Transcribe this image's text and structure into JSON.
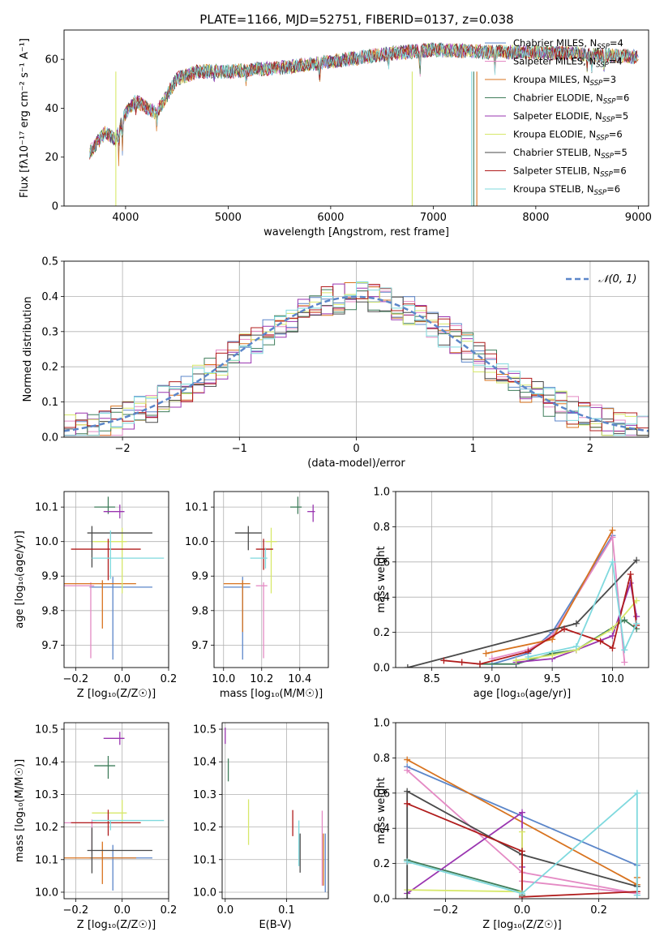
{
  "figure_title": "PLATE=1166, MJD=52751, FIBERID=0137, z=0.038",
  "colors": [
    "#5b86c9",
    "#e48ac4",
    "#d8731f",
    "#3f7d5a",
    "#9a35b0",
    "#d7e86a",
    "#4a4a4a",
    "#b01c1c",
    "#7fd9de"
  ],
  "chart_data": [
    {
      "type": "line",
      "title": "PLATE=1166, MJD=52751, FIBERID=0137, z=0.038",
      "xlabel": "wavelength [Angstrom, rest frame]",
      "ylabel": "Flux [fλ10⁻¹⁷ erg cm⁻² s⁻¹ A⁻¹]",
      "xlim": [
        3400,
        9100
      ],
      "ylim": [
        0,
        72
      ],
      "xticks": [
        "4000",
        "5000",
        "6000",
        "7000",
        "8000",
        "9000"
      ],
      "yticks": [
        "0",
        "20",
        "40",
        "60"
      ],
      "grid": false,
      "legend": "top-right",
      "spectrum_continuum": {
        "x": [
          3650,
          3800,
          3900,
          4000,
          4100,
          4300,
          4500,
          4700,
          5000,
          5300,
          5600,
          6000,
          6500,
          7000,
          7500,
          8000,
          8500,
          9000
        ],
        "y": [
          22,
          30,
          27,
          38,
          43,
          38,
          52,
          55,
          55,
          56,
          57,
          59,
          62,
          64,
          63,
          63,
          62,
          61
        ]
      },
      "series": [
        {
          "name": "Chabrier MILES, N",
          "sub": "SSP",
          "eq": "=4"
        },
        {
          "name": "Salpeter MILES, N",
          "sub": "SSP",
          "eq": "=4"
        },
        {
          "name": "Kroupa MILES, N",
          "sub": "SSP",
          "eq": "=3"
        },
        {
          "name": "Chabrier ELODIE, N",
          "sub": "SSP",
          "eq": "=6"
        },
        {
          "name": "Salpeter ELODIE, N",
          "sub": "SSP",
          "eq": "=5"
        },
        {
          "name": "Kroupa ELODIE, N",
          "sub": "SSP",
          "eq": "=6"
        },
        {
          "name": "Chabrier STELIB, N",
          "sub": "SSP",
          "eq": "=5"
        },
        {
          "name": "Salpeter STELIB, N",
          "sub": "SSP",
          "eq": "=6"
        },
        {
          "name": "Kroupa STELIB, N",
          "sub": "SSP",
          "eq": "=6"
        }
      ]
    },
    {
      "type": "step-histogram",
      "xlabel": "(data-model)/error",
      "ylabel": "Normed distribution",
      "xlim": [
        -2.5,
        2.5
      ],
      "ylim": [
        0,
        0.5
      ],
      "xticks": [
        "−2",
        "−1",
        "0",
        "1",
        "2"
      ],
      "yticks": [
        "0.0",
        "0.1",
        "0.2",
        "0.3",
        "0.4",
        "0.5"
      ],
      "grid": true,
      "legend": "top-right",
      "reference_curve": {
        "name": "𝒩(0, 1)",
        "mean": 0,
        "sigma": 1
      },
      "bin_width": 0.1,
      "shape": "normal"
    },
    {
      "type": "errorbar",
      "xlabel": "Z [log₁₀(Z/Z☉)]",
      "ylabel": "age  [log₁₀(age/yr)]",
      "xlim": [
        -0.25,
        0.2
      ],
      "ylim": [
        9.635,
        10.145
      ],
      "xticks": [
        "−0.2",
        "0.0",
        "0.2"
      ],
      "yticks": [
        "9.7",
        "9.8",
        "9.9",
        "10.0",
        "10.1"
      ],
      "grid": true,
      "points": [
        {
          "x": -0.04,
          "y": 9.868,
          "xerr": [
            0.1,
            0.17
          ],
          "yerr": [
            0.21,
            0.03
          ]
        },
        {
          "x": -0.135,
          "y": 9.872,
          "xerr": [
            0.115,
            0.015
          ],
          "yerr": [
            0.21,
            0.01
          ]
        },
        {
          "x": -0.085,
          "y": 9.878,
          "xerr": [
            0.165,
            0.145
          ],
          "yerr": [
            0.13,
            0.01
          ]
        },
        {
          "x": -0.06,
          "y": 10.1,
          "xerr": [
            0.06,
            0.03
          ],
          "yerr": [
            0.02,
            0.03
          ]
        },
        {
          "x": -0.01,
          "y": 10.087,
          "xerr": [
            0.07,
            0.02
          ],
          "yerr": [
            0.02,
            0.02
          ]
        },
        {
          "x": 0.0,
          "y": 10.0,
          "xerr": [
            0.13,
            0.02
          ],
          "yerr": [
            0.15,
            0.04
          ]
        },
        {
          "x": -0.13,
          "y": 10.025,
          "xerr": [
            0.02,
            0.26
          ],
          "yerr": [
            0.1,
            0.02
          ]
        },
        {
          "x": -0.06,
          "y": 9.978,
          "xerr": [
            0.16,
            0.14
          ],
          "yerr": [
            0.09,
            0.03
          ]
        },
        {
          "x": -0.05,
          "y": 9.952,
          "xerr": [
            0.08,
            0.23
          ],
          "yerr": [
            0.06,
            0.08
          ]
        }
      ]
    },
    {
      "type": "errorbar",
      "xlabel": "mass [log₁₀(M/M☉)]",
      "ylabel": "",
      "xlim": [
        9.95,
        10.55
      ],
      "ylim": [
        9.635,
        10.145
      ],
      "xticks": [
        "10.0",
        "10.2",
        "10.4"
      ],
      "yticks": [
        "9.7",
        "9.8",
        "9.9",
        "10.0",
        "10.1"
      ],
      "grid": true,
      "points": [
        {
          "x": 10.1,
          "y": 9.868,
          "xerr": [
            0.1,
            0.04
          ],
          "yerr": [
            0.21,
            0.03
          ]
        },
        {
          "x": 10.21,
          "y": 9.872,
          "xerr": [
            0.04,
            0.02
          ],
          "yerr": [
            0.21,
            0.01
          ]
        },
        {
          "x": 10.1,
          "y": 9.878,
          "xerr": [
            0.1,
            0.04
          ],
          "yerr": [
            0.14,
            0.01
          ]
        },
        {
          "x": 10.39,
          "y": 10.1,
          "xerr": [
            0.04,
            0.02
          ],
          "yerr": [
            0.02,
            0.03
          ]
        },
        {
          "x": 10.47,
          "y": 10.087,
          "xerr": [
            0.03,
            0.01
          ],
          "yerr": [
            0.03,
            0.02
          ]
        },
        {
          "x": 10.25,
          "y": 10.0,
          "xerr": [
            0.03,
            0.03
          ],
          "yerr": [
            0.15,
            0.04
          ]
        },
        {
          "x": 10.13,
          "y": 10.025,
          "xerr": [
            0.07,
            0.07
          ],
          "yerr": [
            0.05,
            0.02
          ]
        },
        {
          "x": 10.21,
          "y": 9.978,
          "xerr": [
            0.04,
            0.05
          ],
          "yerr": [
            0.06,
            0.03
          ]
        },
        {
          "x": 10.22,
          "y": 9.952,
          "xerr": [
            0.08,
            0.01
          ],
          "yerr": [
            0.03,
            0.03
          ]
        }
      ]
    },
    {
      "type": "line",
      "xlabel": "age  [log₁₀(age/yr)]",
      "ylabel": "mass weight",
      "xlim": [
        8.2,
        10.3
      ],
      "ylim": [
        0,
        1
      ],
      "xticks": [
        "8.5",
        "9.0",
        "9.5",
        "10.0"
      ],
      "yticks": [
        "0.0",
        "0.2",
        "0.4",
        "0.6",
        "0.8",
        "1.0"
      ],
      "grid": true,
      "series": [
        {
          "x": [
            9.0,
            9.3,
            9.5,
            10.0
          ],
          "y": [
            0.02,
            0.08,
            0.2,
            0.75
          ]
        },
        {
          "x": [
            9.0,
            9.3,
            9.5,
            10.0,
            10.1
          ],
          "y": [
            0.05,
            0.1,
            0.18,
            0.74,
            0.03
          ]
        },
        {
          "x": [
            8.95,
            9.5,
            10.0
          ],
          "y": [
            0.08,
            0.16,
            0.78
          ]
        },
        {
          "x": [
            8.9,
            9.2,
            9.5,
            9.7,
            10.1,
            10.2
          ],
          "y": [
            0.02,
            0.02,
            0.08,
            0.1,
            0.27,
            0.22
          ]
        },
        {
          "x": [
            9.2,
            9.5,
            9.7,
            10.0,
            10.15,
            10.2
          ],
          "y": [
            0.03,
            0.05,
            0.1,
            0.18,
            0.48,
            0.29
          ]
        },
        {
          "x": [
            9.2,
            9.5,
            9.7,
            10.0,
            10.2
          ],
          "y": [
            0.04,
            0.07,
            0.1,
            0.22,
            0.38
          ]
        },
        {
          "x": [
            8.3,
            9.7,
            10.2
          ],
          "y": [
            0.0,
            0.25,
            0.61
          ]
        },
        {
          "x": [
            8.6,
            8.75,
            8.9,
            9.3,
            9.6,
            9.9,
            10.0,
            10.15,
            10.2
          ],
          "y": [
            0.04,
            0.03,
            0.02,
            0.09,
            0.22,
            0.15,
            0.11,
            0.53,
            0.24
          ]
        },
        {
          "x": [
            9.3,
            9.7,
            10.0,
            10.1,
            10.2
          ],
          "y": [
            0.06,
            0.12,
            0.6,
            0.1,
            0.25
          ]
        }
      ]
    },
    {
      "type": "errorbar",
      "xlabel": "Z [log₁₀(Z/Z☉)]",
      "ylabel": "mass [log₁₀(M/M☉)]",
      "xlim": [
        -0.25,
        0.2
      ],
      "ylim": [
        9.98,
        10.52
      ],
      "xticks": [
        "−0.2",
        "0.0",
        "0.2"
      ],
      "yticks": [
        "10.0",
        "10.1",
        "10.2",
        "10.3",
        "10.4",
        "10.5"
      ],
      "grid": true,
      "points": [
        {
          "x": -0.04,
          "y": 10.105,
          "xerr": [
            0.1,
            0.17
          ],
          "yerr": [
            0.1,
            0.04
          ]
        },
        {
          "x": -0.13,
          "y": 10.213,
          "xerr": [
            0.12,
            0.02
          ],
          "yerr": [
            0.09,
            0.01
          ]
        },
        {
          "x": -0.085,
          "y": 10.105,
          "xerr": [
            0.165,
            0.145
          ],
          "yerr": [
            0.08,
            0.05
          ]
        },
        {
          "x": -0.06,
          "y": 10.388,
          "xerr": [
            0.06,
            0.03
          ],
          "yerr": [
            0.04,
            0.03
          ]
        },
        {
          "x": -0.01,
          "y": 10.472,
          "xerr": [
            0.07,
            0.02
          ],
          "yerr": [
            0.02,
            0.02
          ]
        },
        {
          "x": 0.0,
          "y": 10.243,
          "xerr": [
            0.13,
            0.02
          ],
          "yerr": [
            0.03,
            0.04
          ]
        },
        {
          "x": -0.13,
          "y": 10.128,
          "xerr": [
            0.02,
            0.26
          ],
          "yerr": [
            0.07,
            0.07
          ]
        },
        {
          "x": -0.06,
          "y": 10.213,
          "xerr": [
            0.16,
            0.14
          ],
          "yerr": [
            0.04,
            0.04
          ]
        },
        {
          "x": -0.05,
          "y": 10.22,
          "xerr": [
            0.08,
            0.23
          ],
          "yerr": [
            0.03,
            0.0
          ]
        }
      ]
    },
    {
      "type": "errorbar",
      "xlabel": "E(B-V)",
      "ylabel": "",
      "xlim": [
        -0.005,
        0.168
      ],
      "ylim": [
        9.98,
        10.52
      ],
      "xticks": [
        "0.0",
        "0.1"
      ],
      "yticks": [
        "10.0",
        "10.1",
        "10.2",
        "10.3",
        "10.4",
        "10.5"
      ],
      "grid": true,
      "points": [
        {
          "x": 0.163,
          "y": 10.11,
          "yerr": [
            0.11,
            0.07
          ]
        },
        {
          "x": 0.158,
          "y": 10.11,
          "yerr": [
            0.09,
            0.14
          ]
        },
        {
          "x": 0.16,
          "y": 10.1,
          "yerr": [
            0.08,
            0.08
          ]
        },
        {
          "x": 0.005,
          "y": 10.38,
          "yerr": [
            0.04,
            0.03
          ]
        },
        {
          "x": 0.0,
          "y": 10.475,
          "yerr": [
            0.02,
            0.03
          ]
        },
        {
          "x": 0.038,
          "y": 10.215,
          "yerr": [
            0.07,
            0.07
          ]
        },
        {
          "x": 0.122,
          "y": 10.12,
          "yerr": [
            0.06,
            0.06
          ]
        },
        {
          "x": 0.11,
          "y": 10.212,
          "yerr": [
            0.04,
            0.04
          ]
        },
        {
          "x": 0.12,
          "y": 10.15,
          "yerr": [
            0.07,
            0.07
          ]
        }
      ]
    },
    {
      "type": "line",
      "xlabel": "Z [log₁₀(Z/Z☉)]",
      "ylabel": "mass weight",
      "xlim": [
        -0.33,
        0.33
      ],
      "ylim": [
        0,
        1
      ],
      "xticks": [
        "−0.2",
        "0.0",
        "0.2"
      ],
      "yticks": [
        "0.0",
        "0.2",
        "0.4",
        "0.6",
        "0.8",
        "1.0"
      ],
      "grid": true,
      "series": [
        {
          "x": [
            -0.3,
            0.3,
            0.3
          ],
          "y": [
            0.75,
            0.19,
            0.02
          ]
        },
        {
          "x": [
            -0.3,
            0.0,
            0.3,
            0.0
          ],
          "y": [
            0.73,
            0.15,
            0.03,
            0.1
          ]
        },
        {
          "x": [
            -0.3,
            0.3,
            0.3
          ],
          "y": [
            0.79,
            0.08,
            0.12
          ]
        },
        {
          "x": [
            -0.3,
            0.0,
            0.0
          ],
          "y": [
            0.22,
            0.04,
            0.02
          ]
        },
        {
          "x": [
            -0.3,
            0.0,
            0.0
          ],
          "y": [
            0.03,
            0.49,
            0.18
          ]
        },
        {
          "x": [
            -0.3,
            0.0,
            0.0
          ],
          "y": [
            0.05,
            0.04,
            0.38
          ]
        },
        {
          "x": [
            -0.3,
            -0.3,
            0.0,
            0.3
          ],
          "y": [
            0.0,
            0.61,
            0.25,
            0.07
          ]
        },
        {
          "x": [
            -0.3,
            0.0,
            0.0,
            0.3
          ],
          "y": [
            0.54,
            0.27,
            0.01,
            0.04
          ]
        },
        {
          "x": [
            -0.3,
            0.0,
            0.3,
            0.3
          ],
          "y": [
            0.21,
            0.03,
            0.6,
            0.02
          ]
        }
      ]
    }
  ]
}
